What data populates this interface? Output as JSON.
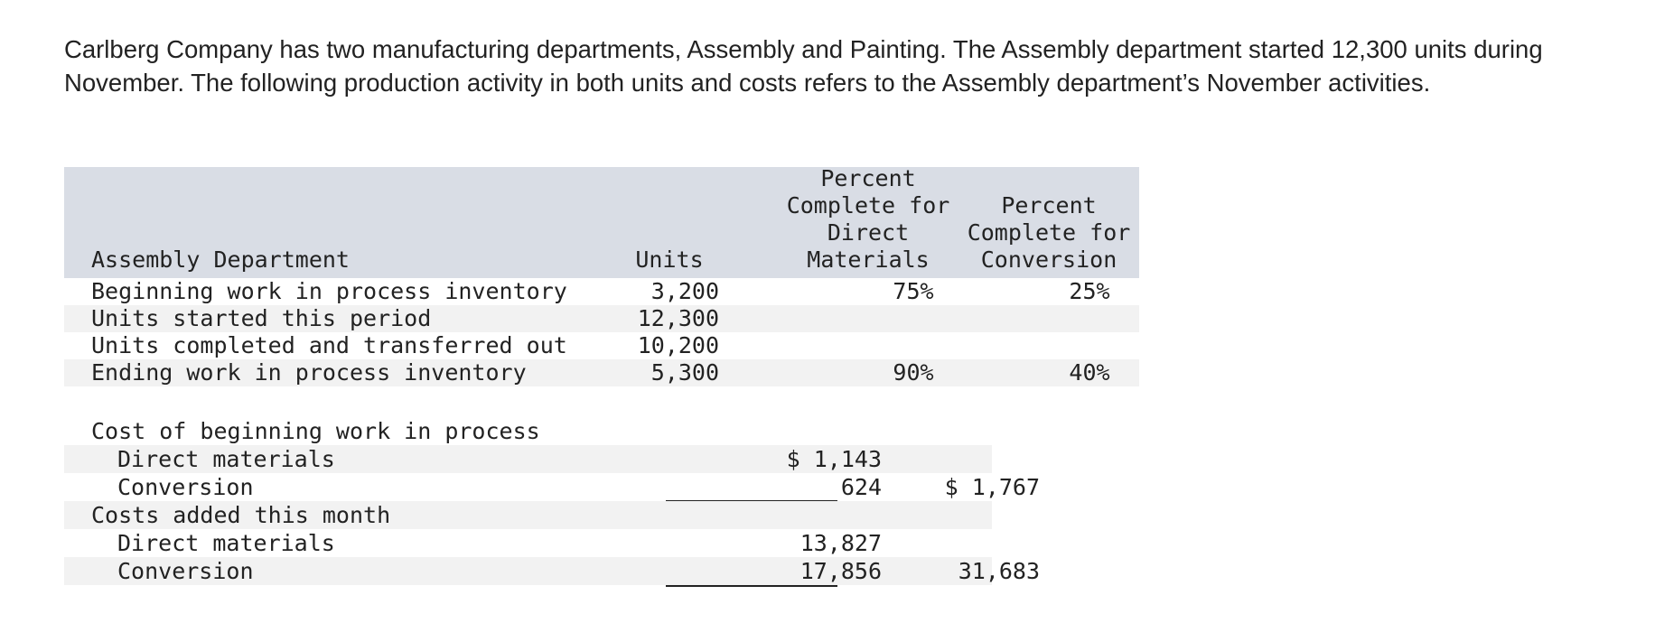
{
  "intro": "Carlberg Company has two manufacturing departments, Assembly and Painting. The Assembly department started 12,300 units during November. The following production activity in both units and costs refers to the Assembly department’s November activities.",
  "units_table": {
    "headers": {
      "label": "Assembly Department",
      "units": "Units",
      "dm_line1": "Percent",
      "dm_line2": "Complete for",
      "dm_line3": "Direct",
      "dm_line4": "Materials",
      "conv_line1": "Percent",
      "conv_line2": "Complete for",
      "conv_line3": "Conversion"
    },
    "rows": [
      {
        "label": "Beginning work in process inventory",
        "units": "3,200",
        "dm": "75%",
        "conv": "25%"
      },
      {
        "label": "Units started this period",
        "units": "12,300",
        "dm": "",
        "conv": ""
      },
      {
        "label": "Units completed and transferred out",
        "units": "10,200",
        "dm": "",
        "conv": ""
      },
      {
        "label": "Ending work in process inventory",
        "units": "5,300",
        "dm": "90%",
        "conv": "40%"
      }
    ]
  },
  "cost_table": {
    "rows": [
      {
        "label": "Cost of beginning work in process",
        "amount": "",
        "total": ""
      },
      {
        "label": "Direct materials",
        "amount": "$ 1,143",
        "total": ""
      },
      {
        "label": "Conversion",
        "amount": "624",
        "total": "$ 1,767"
      },
      {
        "label": "Costs added this month",
        "amount": "",
        "total": ""
      },
      {
        "label": "Direct materials",
        "amount": "13,827",
        "total": ""
      },
      {
        "label": "Conversion",
        "amount": "17,856",
        "total": "31,683"
      }
    ]
  }
}
